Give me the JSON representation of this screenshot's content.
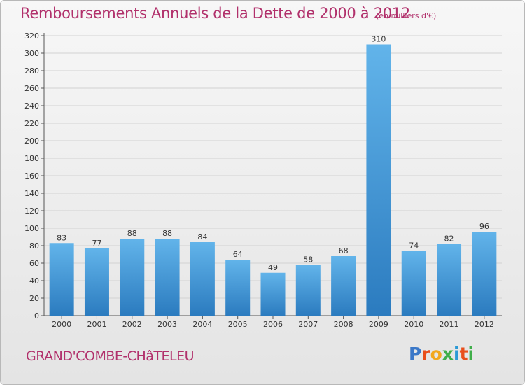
{
  "title": "Remboursements Annuels de la Dette de 2000 à 2012",
  "subtitle": "(en milliers d'€)",
  "place": "GRAND'COMBE-CHâTELEU",
  "brand": {
    "letters": [
      "P",
      "r",
      "o",
      "x",
      "i",
      "t",
      "i"
    ],
    "colors": [
      "#3b78c8",
      "#e94e1b",
      "#f2a81d",
      "#3fae49",
      "#2b9ad6",
      "#e94e1b",
      "#3fae49"
    ]
  },
  "colors": {
    "bar_top": "#62b4ea",
    "bar_bottom": "#2b7bbf",
    "title": "#b1306b",
    "grid": "#d2d2d2"
  },
  "chart_data": {
    "type": "bar",
    "title": "Remboursements Annuels de la Dette de 2000 à 2012",
    "subtitle": "(en milliers d'€)",
    "categories": [
      "2000",
      "2001",
      "2002",
      "2003",
      "2004",
      "2005",
      "2006",
      "2007",
      "2008",
      "2009",
      "2010",
      "2011",
      "2012"
    ],
    "values": [
      83,
      77,
      88,
      88,
      84,
      64,
      49,
      58,
      68,
      310,
      74,
      82,
      96
    ],
    "value_labels": [
      "83",
      "77",
      "88",
      "88",
      "84",
      "64",
      "49",
      "58",
      "68",
      "310",
      "74",
      "82",
      "96"
    ],
    "xlabel": "",
    "ylabel": "",
    "ylim": [
      0,
      320
    ],
    "yticks": [
      0,
      20,
      40,
      60,
      80,
      100,
      120,
      140,
      160,
      180,
      200,
      220,
      240,
      260,
      280,
      300,
      320
    ],
    "ytick_labels": [
      "0",
      "20",
      "40",
      "60",
      "80",
      "100",
      "120",
      "140",
      "160",
      "180",
      "200",
      "220",
      "240",
      "260",
      "280",
      "300",
      "320"
    ],
    "grid": true,
    "legend": "none"
  }
}
